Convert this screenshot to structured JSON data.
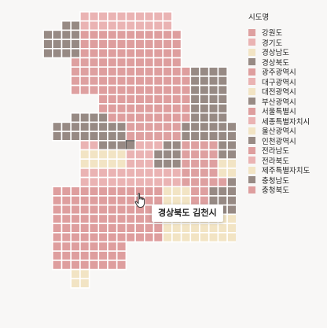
{
  "chart_data": {
    "type": "heatmap",
    "legend": {
      "title": "시도명",
      "placement": "top-right",
      "entries": [
        {
          "label": "강원도",
          "color": "#dea0a0"
        },
        {
          "label": "경기도",
          "color": "#eab3b3"
        },
        {
          "label": "경상남도",
          "color": "#f2e4c4"
        },
        {
          "label": "경상북도",
          "color": "#978a84"
        },
        {
          "label": "광주광역시",
          "color": "#de9e9e"
        },
        {
          "label": "대구광역시",
          "color": "#eab3b3"
        },
        {
          "label": "대전광역시",
          "color": "#f2e4c4"
        },
        {
          "label": "부산광역시",
          "color": "#978a84"
        },
        {
          "label": "서울특별시",
          "color": "#de9e9e"
        },
        {
          "label": "세종특별자치시",
          "color": "#eab3b3"
        },
        {
          "label": "울산광역시",
          "color": "#f2e4c4"
        },
        {
          "label": "인천광역시",
          "color": "#978a84"
        },
        {
          "label": "전라남도",
          "color": "#de9e9e"
        },
        {
          "label": "전라북도",
          "color": "#eab3b3"
        },
        {
          "label": "제주특별자치도",
          "color": "#f2e4c4"
        },
        {
          "label": "충청남도",
          "color": "#978a84"
        },
        {
          "label": "충청북도",
          "color": "#de9e9e"
        }
      ]
    },
    "tiles_by_row": [
      ".......BBBBBBBBBB..........",
      ".....CCBBBBBBBBBB..........",
      "...CCCCAAAAAAAAAAA.........",
      "...CCCCAAAAAAAAAAA.........",
      "...CCCCAAAAAAAAAAA.........",
      "......DDDAAAAAAAAA.........",
      "......DDDAAAAAAAAAACCCC....",
      "......DDDAAAAAAAAAACCCC....",
      "......DDDAAAAAAAAAACCCC.C..",
      ".........AAAAAAAAAACCCC....",
      ".........AAAAAAAAAACCCC....",
      "......CCCCAAAAAAAAACCCC....",
      "....CCCCCCCCDDDDDDCCCCCC...",
      "....CCCCCCCCDDDDDDCCCCCC...",
      ".......BBCCCCBBBCCDDDDCCC..",
      ".......EEEEEBBBCCCDDDDCCC..",
      ".......EEEEEBBBCCCDDDDEEE..",
      ".......BBBBBBBBBBBDDDDEEE..",
      ".......BBBBBBBBBBBDDDDDCC..",
      "....AAAAAAAAAAAAEEEDDCCCC..",
      "....AAAAAAAAAAAAEEEDDCCCC..",
      "....AAAAAAAAAAAAEEEDCCCCC..",
      "....AAAAAAAAAAAAEEEEEEEE...",
      "....AAAAAAAAAAAAEEEEEEEE...",
      "....AAAAAAAAAAAAEEEEEEEE...",
      "....AAAAAAAA...............",
      "....AAAAAAAA...............",
      "....AAAAAAAA...............",
      "......EE...................",
      "......EE..................."
    ],
    "tile_colors": {
      "A": "#de9e9e",
      "B": "#eab3b3",
      "C": "#978a84",
      "D": "#dea0a0",
      "E": "#f2e4c4"
    },
    "hover_tile": {
      "row": 14,
      "col": 12,
      "color": "#978a84"
    },
    "tooltip": "경상북도 김천시"
  }
}
